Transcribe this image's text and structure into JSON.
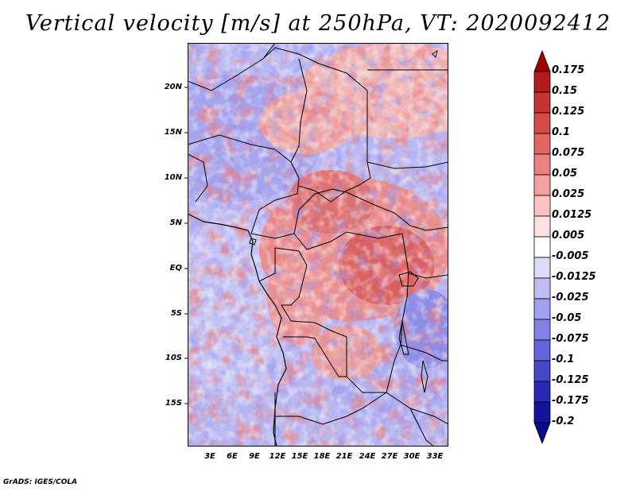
{
  "title": "Vertical velocity [m/s] at 250hPa, VT: 2020092412",
  "footer": "GrADS: IGES/COLA",
  "map": {
    "lat_range": [
      -20,
      25
    ],
    "lon_range": [
      0,
      35
    ],
    "lat_labels": [
      "20N",
      "15N",
      "10N",
      "5N",
      "EQ",
      "5S",
      "10S",
      "15S"
    ],
    "lon_labels": [
      "3E",
      "6E",
      "9E",
      "12E",
      "15E",
      "18E",
      "21E",
      "24E",
      "27E",
      "30E",
      "33E"
    ]
  },
  "colorbar": {
    "labels": [
      "0.175",
      "0.15",
      "0.125",
      "0.1",
      "0.075",
      "0.05",
      "0.025",
      "0.0125",
      "0.005",
      "-0.005",
      "-0.0125",
      "-0.025",
      "-0.05",
      "-0.075",
      "-0.1",
      "-0.125",
      "-0.175",
      "-0.2"
    ],
    "colors": [
      "#a00000",
      "#b41c1c",
      "#c83232",
      "#d84a4a",
      "#e46464",
      "#ee8080",
      "#f5a0a0",
      "#fac3c3",
      "#fde1e1",
      "#ffffff",
      "#dcdcfa",
      "#bebef5",
      "#a0a0f0",
      "#8282e6",
      "#6464dc",
      "#4646c8",
      "#2828b4",
      "#14149b",
      "#0a0a8c"
    ]
  }
}
